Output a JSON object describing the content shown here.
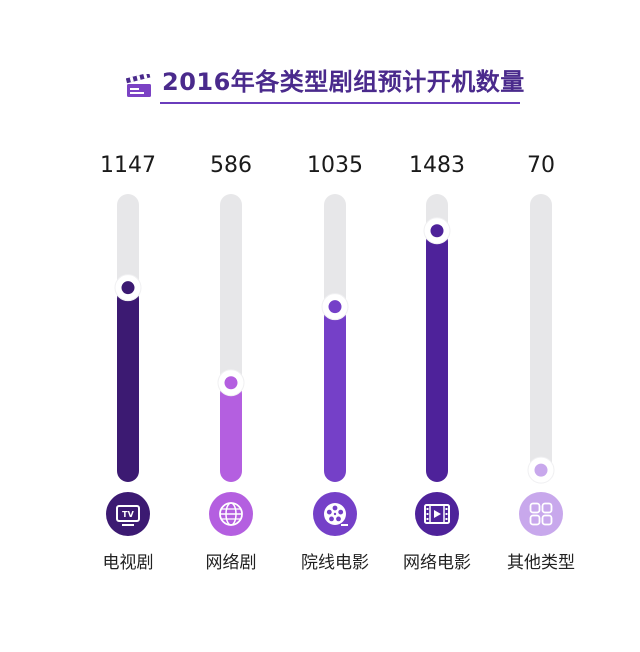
{
  "title": "2016年各类型剧组预计开机数量",
  "title_icon": "clapperboard-icon",
  "chart_data": {
    "type": "bar",
    "orientation": "vertical",
    "title": "2016年各类型剧组预计开机数量",
    "categories": [
      "电视剧",
      "网络剧",
      "院线电影",
      "网络电影",
      "其他类型"
    ],
    "values": [
      1147,
      586,
      1035,
      1483,
      70
    ],
    "value_labels": [
      "1147",
      "586",
      "1035",
      "1483",
      "70"
    ],
    "icons": [
      "tv-icon",
      "globe-icon",
      "film-reel-icon",
      "film-strip-icon",
      "grid-icon"
    ],
    "colors": [
      "#3c1a72",
      "#b45fe0",
      "#7540c8",
      "#4e229a",
      "#c8a8ec"
    ],
    "track_color": "#e7e7e9",
    "ylim": [
      0,
      1700
    ],
    "grid": false,
    "legend": "none"
  }
}
